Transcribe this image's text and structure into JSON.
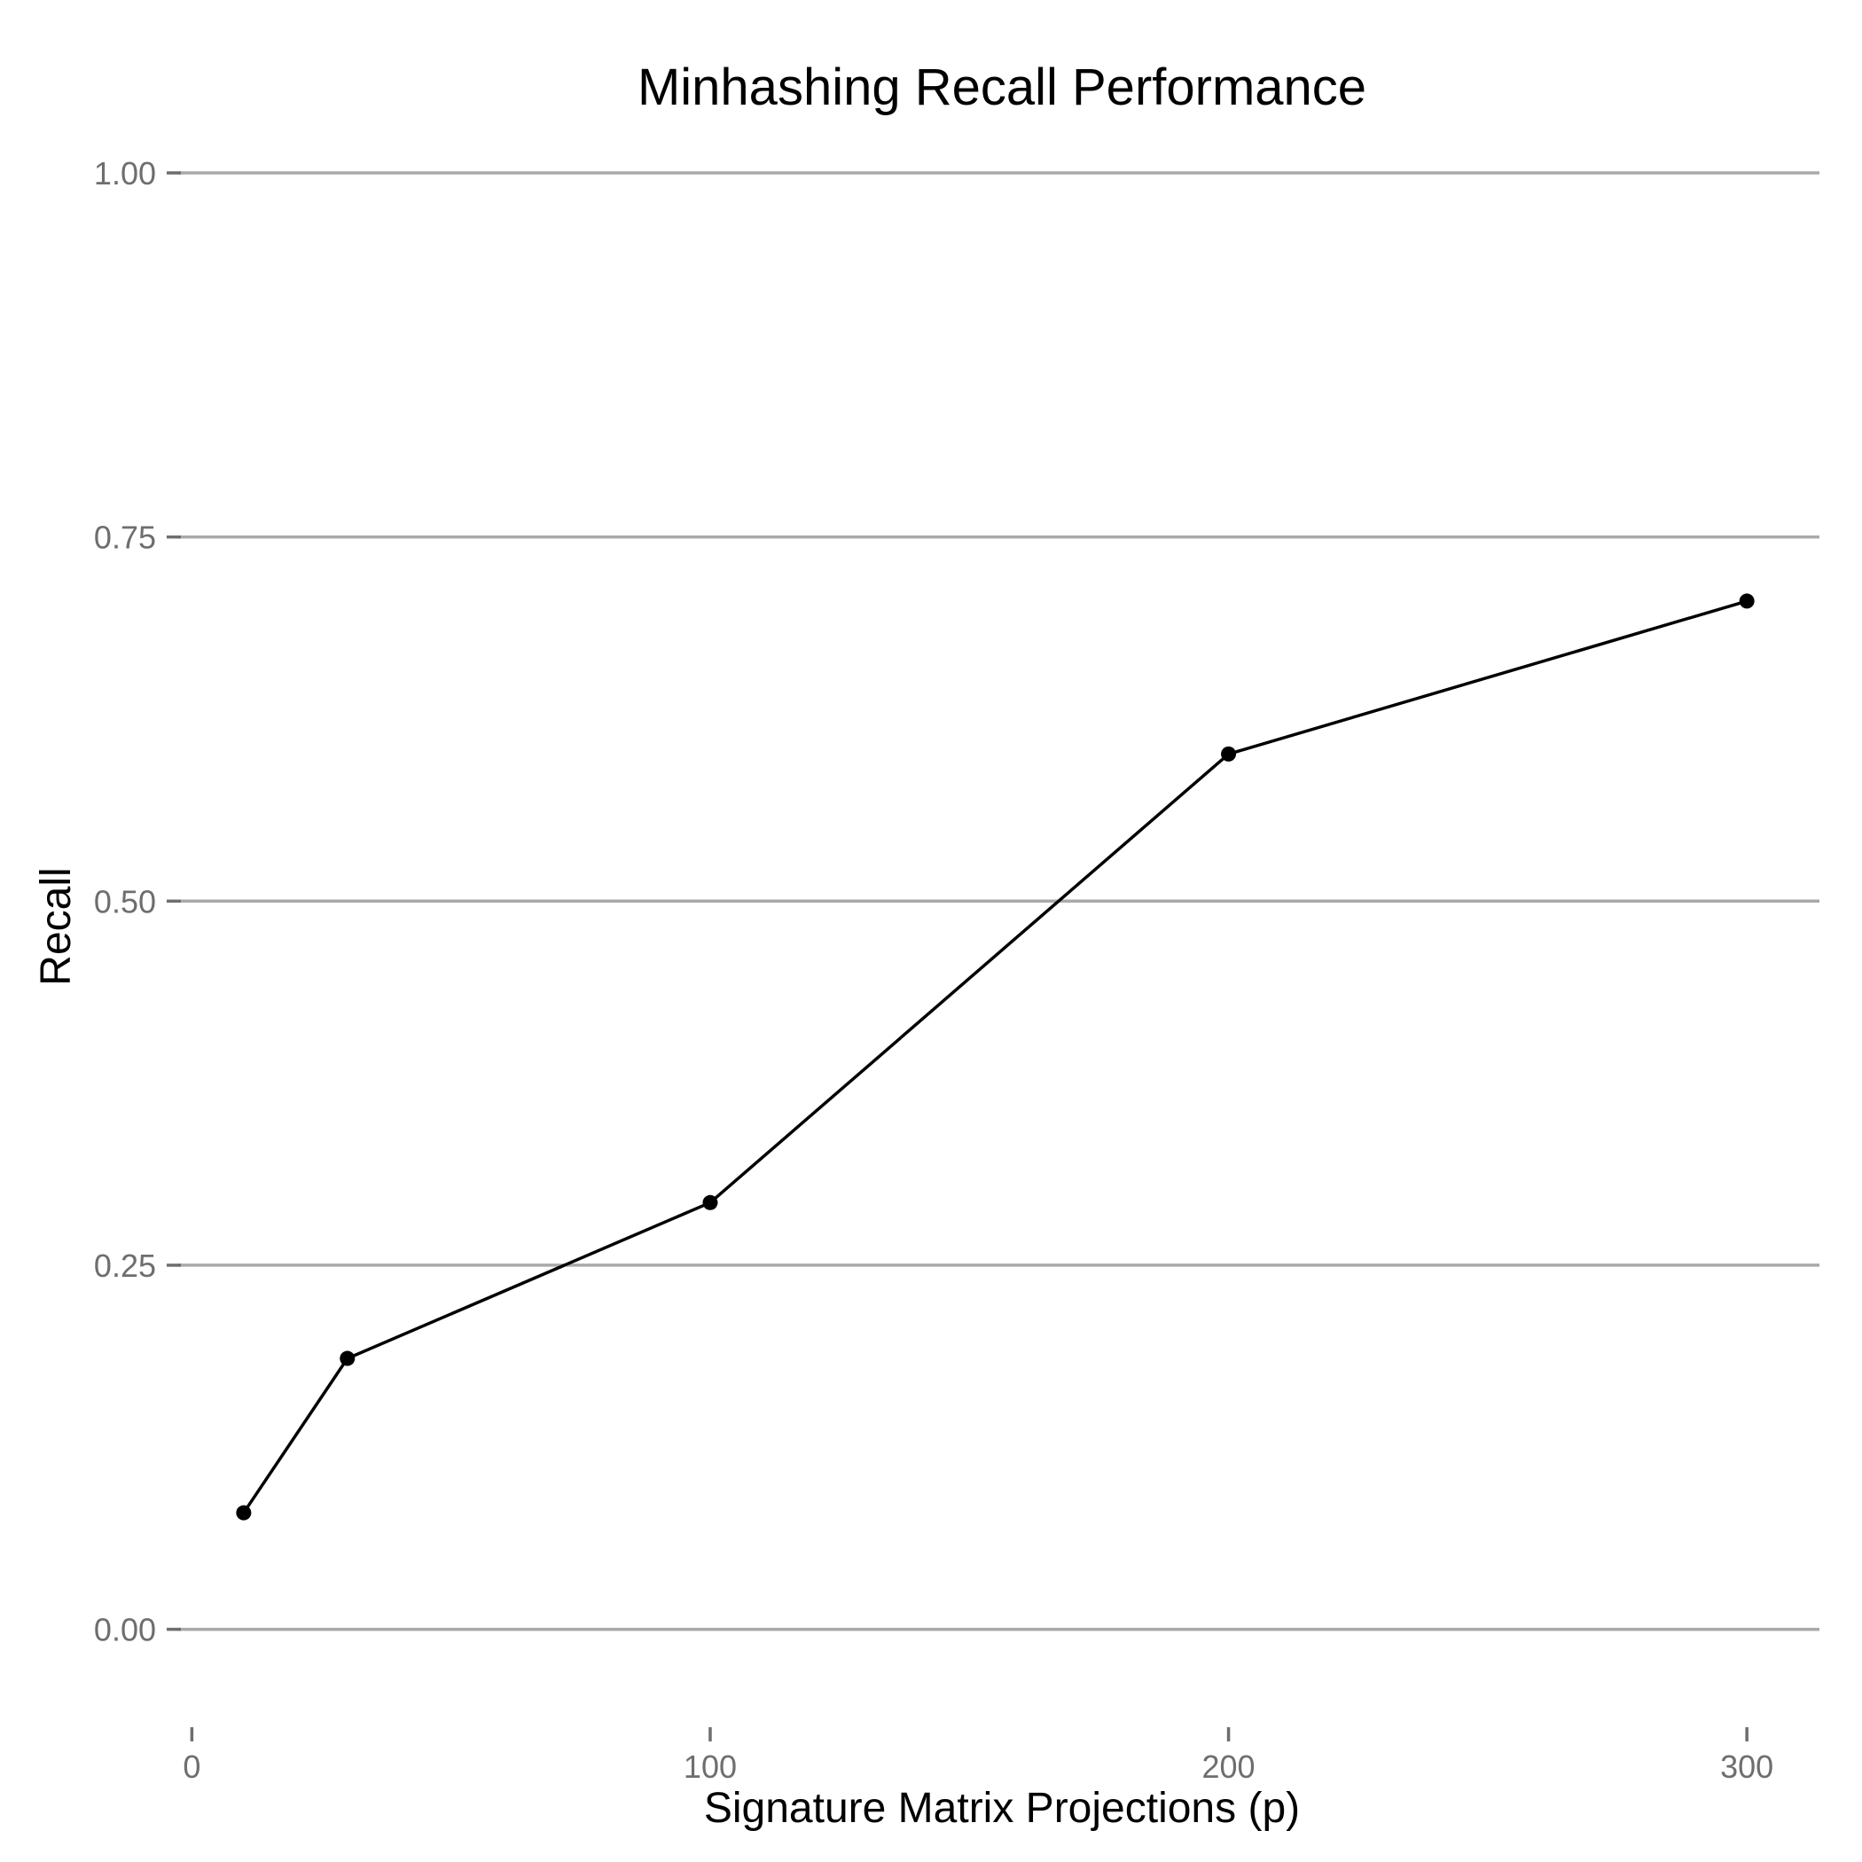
{
  "chart_data": {
    "type": "line",
    "title": "Minhashing Recall Performance",
    "xlabel": "Signature Matrix Projections (p)",
    "ylabel": "Recall",
    "xlim": [
      -4,
      314
    ],
    "ylim": [
      -0.038,
      1.0
    ],
    "x_ticks": [
      0,
      100,
      200,
      300
    ],
    "x_tick_labels": [
      "0",
      "100",
      "200",
      "300"
    ],
    "y_ticks": [
      0,
      0.25,
      0.5,
      0.75,
      1.0
    ],
    "y_tick_labels": [
      "0.00",
      "0.25",
      "0.50",
      "0.75",
      "1.00"
    ],
    "grid": "horizontal",
    "legend": "none",
    "colors": {
      "line": "#000000",
      "grid": "#a9a9a9",
      "tick_text": "#6e6e6e",
      "background": "#ffffff"
    },
    "series": [
      {
        "x": [
          10,
          30,
          100,
          200,
          300
        ],
        "values": [
          0.08,
          0.186,
          0.293,
          0.601,
          0.706
        ]
      }
    ]
  }
}
